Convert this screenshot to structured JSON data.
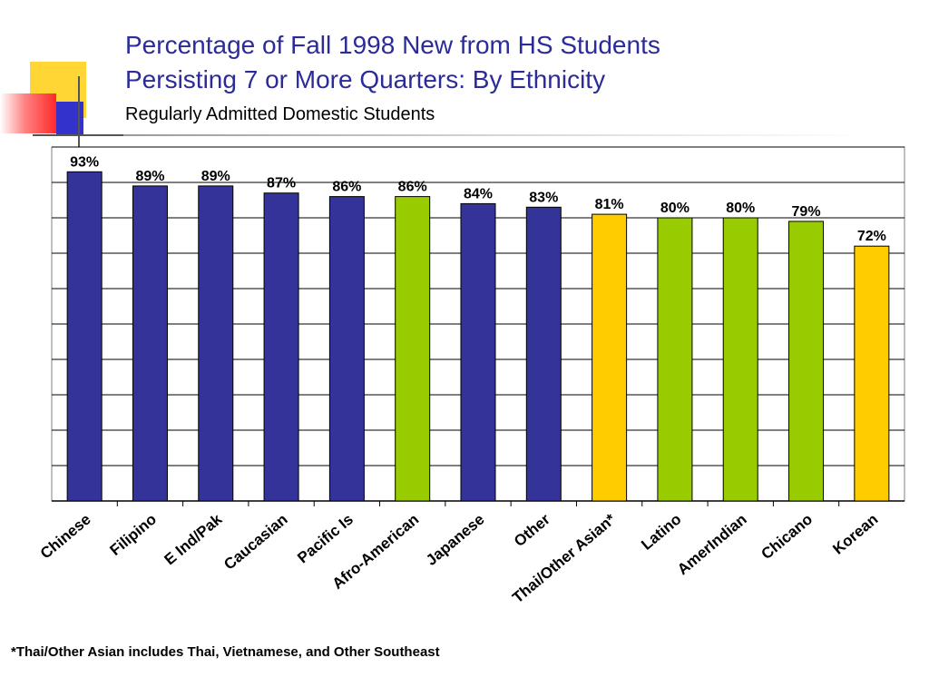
{
  "slide": {
    "title_line1": "Percentage of Fall 1998 New from HS Students",
    "title_line2": "Persisting 7 or More Quarters: By Ethnicity",
    "subtitle": "Regularly Admitted Domestic Students",
    "footnote": "*Thai/Other Asian includes Thai, Vietnamese, and Other Southeast"
  },
  "colors": {
    "title": "#2b2b99",
    "blue": "#333399",
    "green": "#99cc00",
    "yellow": "#ffcc00",
    "gridline": "#000000",
    "deco_yellow": "#ffd633",
    "deco_blue": "#3333cc",
    "deco_red": "#ff2a2a"
  },
  "chart_data": {
    "type": "bar",
    "title": "",
    "xlabel": "",
    "ylabel": "",
    "ylim": [
      0,
      100
    ],
    "grid": true,
    "legend": "none",
    "categories": [
      "Chinese",
      "Filipino",
      "E Ind/Pak",
      "Caucasian",
      "Pacific Is",
      "Afro-American",
      "Japanese",
      "Other",
      "Thai/Other Asian*",
      "Latino",
      "AmerIndian",
      "Chicano",
      "Korean"
    ],
    "values": [
      93,
      89,
      89,
      87,
      86,
      86,
      84,
      83,
      81,
      80,
      80,
      79,
      72
    ],
    "data_labels": [
      "93%",
      "89%",
      "89%",
      "87%",
      "86%",
      "86%",
      "84%",
      "83%",
      "81%",
      "80%",
      "80%",
      "79%",
      "72%"
    ],
    "bar_colors": [
      "#333399",
      "#333399",
      "#333399",
      "#333399",
      "#333399",
      "#99cc00",
      "#333399",
      "#333399",
      "#ffcc00",
      "#99cc00",
      "#99cc00",
      "#99cc00",
      "#ffcc00"
    ]
  }
}
